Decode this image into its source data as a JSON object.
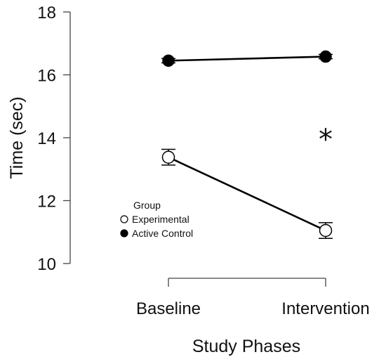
{
  "chart_data": {
    "type": "line",
    "categories": [
      "Baseline",
      "Intervention"
    ],
    "xlabel": "Study Phases",
    "ylabel": "Time (sec)",
    "ylim": [
      10,
      18
    ],
    "yticks": [
      "10",
      "12",
      "14",
      "16",
      "18"
    ],
    "grid": false,
    "legend": {
      "title": "Group",
      "placement": "left-center",
      "entries": [
        "Experimental",
        "Active Control"
      ]
    },
    "series": [
      {
        "name": "Experimental",
        "marker": "open-circle",
        "values": [
          13.38,
          11.05
        ],
        "error": [
          0.25,
          0.25
        ]
      },
      {
        "name": "Active Control",
        "marker": "filled-circle",
        "values": [
          16.45,
          16.58
        ],
        "error": [
          0.07,
          0.07
        ]
      }
    ],
    "annotations": [
      {
        "text": "*",
        "category": "Intervention",
        "y": 14.0
      }
    ],
    "colors": {
      "line": "#000000",
      "axis": "#444444"
    }
  }
}
